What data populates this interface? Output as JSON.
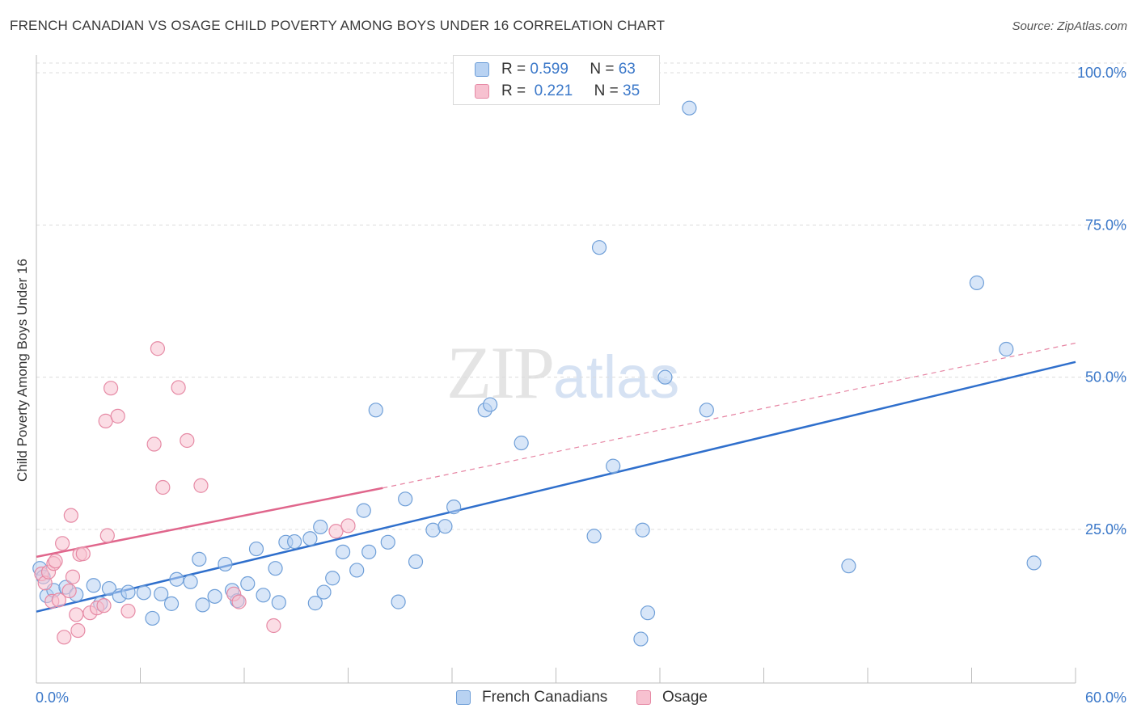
{
  "header": {
    "title": "FRENCH CANADIAN VS OSAGE CHILD POVERTY AMONG BOYS UNDER 16 CORRELATION CHART",
    "source": "Source: ZipAtlas.com"
  },
  "watermark": {
    "zip": "ZIP",
    "atlas": "atlas"
  },
  "legend_top": {
    "rows": [
      {
        "r_label": "R =",
        "r_value": "0.599",
        "n_label": "N =",
        "n_value": "63",
        "color": "#b8d2f2",
        "border": "#6f9fd8"
      },
      {
        "r_label": "R =",
        "r_value": "0.221",
        "n_label": "N =",
        "n_value": "35",
        "color": "#f7c1d0",
        "border": "#e68aa5"
      }
    ]
  },
  "legend_bottom": [
    {
      "label": "French Canadians",
      "color": "#b8d2f2",
      "border": "#6f9fd8"
    },
    {
      "label": "Osage",
      "color": "#f7c1d0",
      "border": "#e68aa5"
    }
  ],
  "chart_data": {
    "type": "scatter",
    "title": "FRENCH CANADIAN VS OSAGE CHILD POVERTY AMONG BOYS UNDER 16 CORRELATION CHART",
    "xlabel": "",
    "ylabel": "Child Poverty Among Boys Under 16",
    "xlim": [
      0,
      60
    ],
    "ylim": [
      0,
      105
    ],
    "x_tick_labels": [
      {
        "value": 0,
        "label": "0.0%"
      },
      {
        "value": 60,
        "label": "60.0%"
      }
    ],
    "y_tick_labels": [
      {
        "value": 25,
        "label": "25.0%"
      },
      {
        "value": 50,
        "label": "50.0%"
      },
      {
        "value": 75,
        "label": "75.0%"
      },
      {
        "value": 100,
        "label": "100.0%"
      }
    ],
    "grid": true,
    "legend_position": "bottom",
    "series": [
      {
        "name": "French Canadians",
        "color": "#6f9fd8",
        "fill": "#b8d2f2",
        "trend": {
          "x": [
            0,
            60
          ],
          "y": [
            11.5,
            52.5
          ],
          "style": "solid",
          "color": "#2f6fcc"
        },
        "points": [
          [
            0.2,
            18.6
          ],
          [
            0.4,
            17.2
          ],
          [
            0.6,
            14.1
          ],
          [
            1.0,
            15.0
          ],
          [
            1.7,
            15.5
          ],
          [
            2.3,
            14.3
          ],
          [
            3.3,
            15.8
          ],
          [
            3.7,
            12.8
          ],
          [
            4.2,
            15.3
          ],
          [
            4.8,
            14.1
          ],
          [
            5.3,
            14.7
          ],
          [
            6.2,
            14.6
          ],
          [
            6.7,
            10.4
          ],
          [
            7.2,
            14.4
          ],
          [
            7.8,
            12.8
          ],
          [
            8.1,
            16.8
          ],
          [
            8.9,
            16.4
          ],
          [
            9.4,
            20.1
          ],
          [
            9.6,
            12.6
          ],
          [
            10.3,
            14.0
          ],
          [
            10.9,
            19.3
          ],
          [
            11.3,
            15.0
          ],
          [
            11.6,
            13.3
          ],
          [
            12.2,
            16.1
          ],
          [
            12.7,
            21.8
          ],
          [
            13.1,
            14.2
          ],
          [
            13.8,
            18.6
          ],
          [
            14.0,
            13.0
          ],
          [
            14.4,
            22.9
          ],
          [
            14.9,
            23.0
          ],
          [
            15.8,
            23.5
          ],
          [
            16.1,
            12.9
          ],
          [
            16.4,
            25.4
          ],
          [
            16.6,
            14.7
          ],
          [
            17.1,
            17.0
          ],
          [
            17.7,
            21.3
          ],
          [
            18.5,
            18.3
          ],
          [
            18.9,
            28.1
          ],
          [
            19.2,
            21.3
          ],
          [
            19.6,
            44.6
          ],
          [
            20.3,
            22.9
          ],
          [
            20.9,
            13.1
          ],
          [
            21.3,
            30.0
          ],
          [
            21.9,
            19.7
          ],
          [
            22.9,
            24.9
          ],
          [
            23.6,
            25.5
          ],
          [
            24.1,
            28.7
          ],
          [
            25.9,
            44.6
          ],
          [
            26.2,
            45.5
          ],
          [
            28.0,
            39.2
          ],
          [
            32.2,
            23.9
          ],
          [
            33.3,
            35.4
          ],
          [
            34.9,
            7.0
          ],
          [
            35.0,
            24.9
          ],
          [
            35.3,
            11.3
          ],
          [
            36.3,
            50.0
          ],
          [
            37.7,
            94.2
          ],
          [
            38.7,
            44.6
          ],
          [
            46.9,
            19.0
          ],
          [
            54.3,
            65.5
          ],
          [
            56.0,
            54.6
          ],
          [
            57.6,
            19.5
          ],
          [
            32.5,
            71.3
          ]
        ]
      },
      {
        "name": "Osage",
        "color": "#e68aa5",
        "fill": "#f7c1d0",
        "trend": {
          "x": [
            0,
            20.0
          ],
          "y": [
            20.5,
            31.8
          ],
          "style": "solid",
          "color": "#e0668c",
          "extended": {
            "x": [
              20.0,
              60
            ],
            "y": [
              31.8,
              55.6
            ],
            "style": "dashed"
          }
        },
        "points": [
          [
            0.3,
            17.7
          ],
          [
            0.5,
            16.2
          ],
          [
            0.7,
            18.0
          ],
          [
            0.9,
            13.2
          ],
          [
            1.0,
            19.4
          ],
          [
            1.1,
            19.8
          ],
          [
            1.3,
            13.4
          ],
          [
            1.5,
            22.7
          ],
          [
            1.6,
            7.3
          ],
          [
            1.9,
            14.9
          ],
          [
            2.0,
            27.3
          ],
          [
            2.1,
            17.2
          ],
          [
            2.3,
            11.0
          ],
          [
            2.4,
            8.4
          ],
          [
            2.5,
            20.9
          ],
          [
            2.7,
            21.0
          ],
          [
            3.1,
            11.3
          ],
          [
            3.5,
            12.1
          ],
          [
            3.9,
            12.5
          ],
          [
            4.0,
            42.8
          ],
          [
            4.1,
            24.0
          ],
          [
            4.3,
            48.2
          ],
          [
            4.7,
            43.6
          ],
          [
            5.3,
            11.6
          ],
          [
            6.8,
            39.0
          ],
          [
            7.0,
            54.7
          ],
          [
            7.3,
            31.9
          ],
          [
            8.2,
            48.3
          ],
          [
            8.7,
            39.6
          ],
          [
            9.5,
            32.2
          ],
          [
            11.4,
            14.4
          ],
          [
            11.7,
            13.1
          ],
          [
            13.7,
            9.2
          ],
          [
            17.3,
            24.7
          ],
          [
            18.0,
            25.6
          ]
        ]
      }
    ]
  }
}
